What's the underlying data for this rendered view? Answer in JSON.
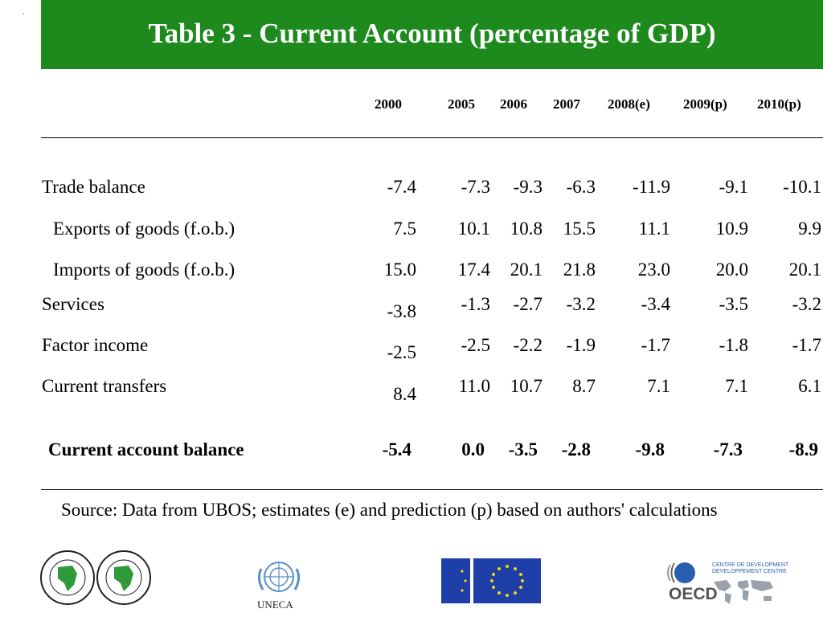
{
  "title": "Table 3 - Current Account (percentage of GDP)",
  "corner_mark": ".",
  "years": [
    "2000",
    "2005",
    "2006",
    "2007",
    "2008(e)",
    "2009(p)",
    "2010(p)"
  ],
  "rows": [
    {
      "label": "Trade balance",
      "values": [
        "-7.4",
        "-7.3",
        "-9.3",
        "-6.3",
        "-11.9",
        "-9.1",
        "-10.1"
      ]
    },
    {
      "label": "Exports of goods (f.o.b.)",
      "values": [
        "7.5",
        "10.1",
        "10.8",
        "15.5",
        "11.1",
        "10.9",
        "9.9"
      ]
    },
    {
      "label": "Imports of goods (f.o.b.)",
      "values": [
        "15.0",
        "17.4",
        "20.1",
        "21.8",
        "23.0",
        "20.0",
        "20.1"
      ]
    },
    {
      "label": "Services",
      "values": [
        "-3.8",
        "-1.3",
        "-2.7",
        "-3.2",
        "-3.4",
        "-3.5",
        "-3.2"
      ]
    },
    {
      "label": "Factor income",
      "values": [
        "-2.5",
        "-2.5",
        "-2.2",
        "-1.9",
        "-1.7",
        "-1.8",
        "-1.7"
      ]
    },
    {
      "label": "Current transfers",
      "values": [
        "8.4",
        "11.0",
        "10.7",
        "8.7",
        "7.1",
        "7.1",
        "6.1"
      ]
    }
  ],
  "total": {
    "label": "Current account balance",
    "values": [
      "-5.4",
      "0.0",
      "-3.5",
      "-2.8",
      "-9.8",
      "-7.3",
      "-8.9"
    ]
  },
  "source": "Source: Data from UBOS; estimates (e) and prediction (p) based on authors' calculations",
  "logos": {
    "uneca_label": "UNECA",
    "oecd_label": "OECD",
    "dev_centre_line1": "CENTRE DE DEVELOPMENT",
    "dev_centre_line2": "DEVELOPPEMENT CENTRE"
  },
  "colors": {
    "title_bar": "#1e8a1e",
    "eu_blue": "#1f3fa8",
    "eu_star": "#f2d21b",
    "afdb_green": "#2e9a3a",
    "un_blue": "#5b8fc9"
  }
}
